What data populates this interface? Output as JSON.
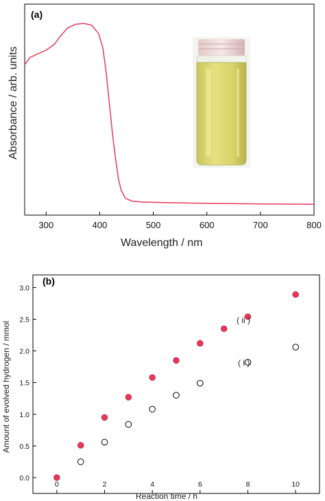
{
  "chart_data": [
    {
      "panel": "(a)",
      "type": "line",
      "xlabel": "Wavelength / nm",
      "ylabel": "Absorbance / arb. units",
      "xlim": [
        260,
        800
      ],
      "xticks": [
        300,
        400,
        500,
        600,
        700,
        800
      ],
      "series_color": "#e8385a",
      "x": [
        260,
        270,
        285,
        300,
        315,
        325,
        340,
        355,
        370,
        385,
        398,
        406,
        412,
        418,
        424,
        430,
        435,
        440,
        448,
        460,
        480,
        520,
        600,
        700,
        800
      ],
      "y": [
        0.76,
        0.8,
        0.82,
        0.84,
        0.87,
        0.91,
        0.96,
        0.98,
        0.985,
        0.975,
        0.93,
        0.85,
        0.72,
        0.55,
        0.38,
        0.24,
        0.14,
        0.08,
        0.035,
        0.02,
        0.015,
        0.012,
        0.008,
        0.005,
        0.003
      ],
      "inset": "photo of vial with pale yellow-green suspension"
    },
    {
      "panel": "(b)",
      "type": "scatter",
      "xlabel": "Reaction time / h",
      "ylabel": "Amount of  evolved hydrogen / mmol",
      "xlim": [
        -1,
        11
      ],
      "ylim": [
        -0.25,
        3.2
      ],
      "xticks": [
        0,
        2,
        4,
        6,
        8,
        10
      ],
      "yticks": [
        "0.0",
        "0.5",
        "1.0",
        "1.5",
        "2.0",
        "2.5",
        "3.0"
      ],
      "series": [
        {
          "label": "( ii )",
          "marker": "filled",
          "color": "#e8385a",
          "x": [
            0,
            1,
            2,
            3,
            4,
            5,
            6,
            7,
            8,
            10
          ],
          "y": [
            0.0,
            0.51,
            0.95,
            1.27,
            1.58,
            1.85,
            2.12,
            2.35,
            2.54,
            2.89
          ]
        },
        {
          "label": "( i )",
          "marker": "open",
          "color": "#000000",
          "x": [
            1,
            2,
            3,
            4,
            5,
            6,
            8,
            10
          ],
          "y": [
            0.25,
            0.56,
            0.84,
            1.08,
            1.3,
            1.49,
            1.82,
            2.06
          ]
        }
      ]
    }
  ]
}
